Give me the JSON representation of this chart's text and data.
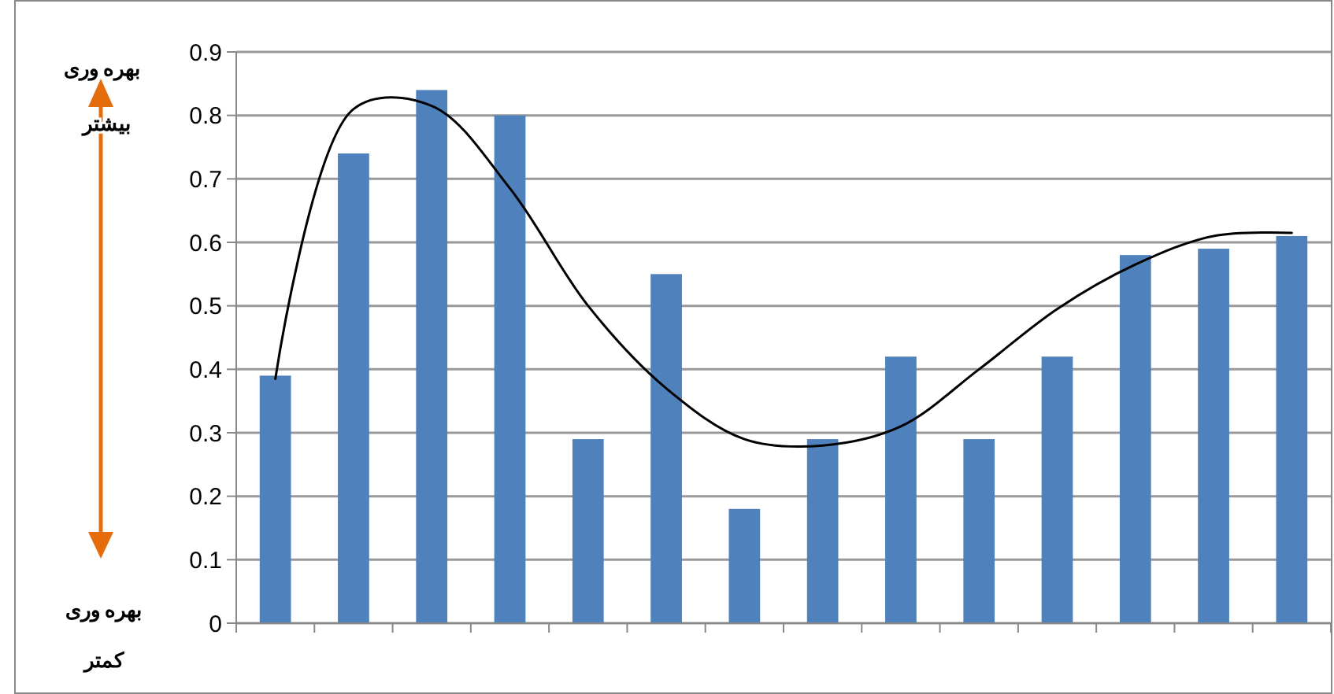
{
  "chart_data": {
    "type": "bar",
    "categories": [
      null,
      null,
      null,
      null,
      null,
      null,
      null,
      null,
      null,
      null,
      null,
      null,
      null,
      null
    ],
    "series": [
      {
        "color": "#4f81bd",
        "values": [
          0.39,
          0.74,
          0.84,
          0.8,
          0.29,
          0.55,
          0.18,
          0.29,
          0.42,
          0.29,
          0.42,
          0.58,
          0.59,
          0.61
        ]
      },
      {
        "type": "line",
        "color": "#000000",
        "values": [
          0.385,
          0.81,
          0.815,
          0.685,
          0.5,
          0.37,
          0.29,
          0.28,
          0.31,
          0.4,
          0.495,
          0.565,
          0.61,
          0.615
        ]
      }
    ],
    "ylim": [
      0,
      0.9
    ],
    "yticks": [
      0,
      0.1,
      0.2,
      0.3,
      0.4,
      0.5,
      0.6,
      0.7,
      0.8,
      0.9
    ],
    "grid": "y",
    "marker": "none",
    "annotations": [
      "بهره وری بیشتر",
      "بهره وری کمتر"
    ]
  }
}
